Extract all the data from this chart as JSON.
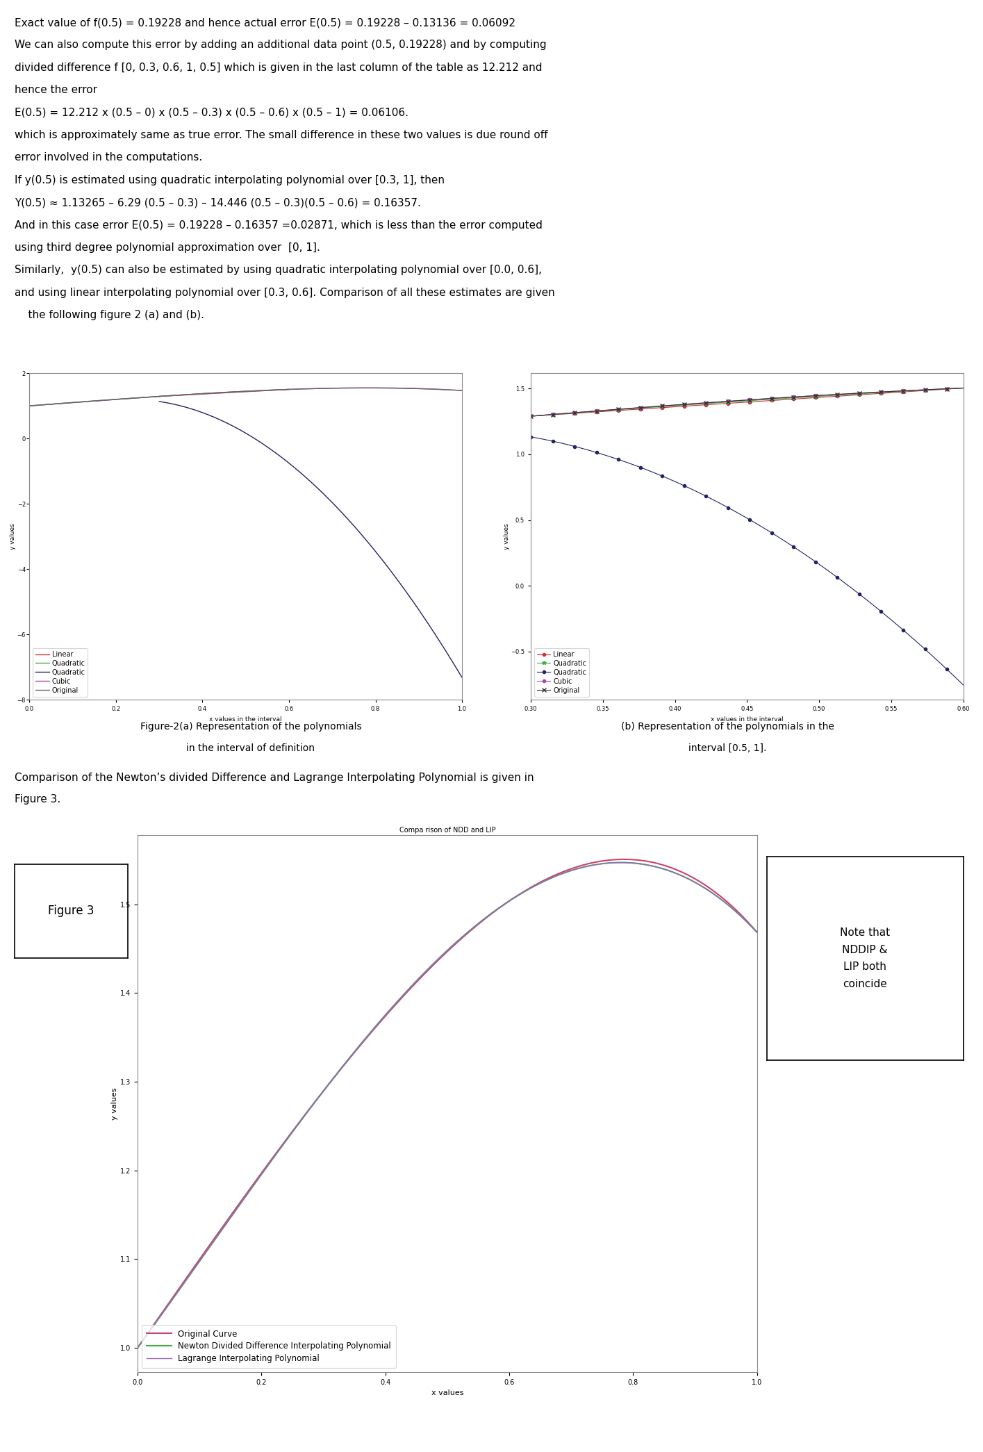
{
  "text_lines": [
    {
      "text": "Exact value of f(0.5) = 0.19228 and hence actual error E(0.5) = 0.19228 – 0.13136 = 0.06092",
      "indent": 0
    },
    {
      "text": "We can also compute this error by adding an additional data point (0.5, 0.19228) and by computing",
      "indent": 0
    },
    {
      "text": "divided difference f [0, 0.3, 0.6, 1, 0.5] which is given in the last column of the table as 12.212 and",
      "indent": 0
    },
    {
      "text": "hence the error",
      "indent": 0
    },
    {
      "text": "E(0.5) = 12.212 x (0.5 – 0) x (0.5 – 0.3) x (0.5 – 0.6) x (0.5 – 1) = 0.06106.",
      "indent": 0
    },
    {
      "text": "which is approximately same as true error. The small difference in these two values is due round off",
      "indent": 0
    },
    {
      "text": "error involved in the computations.",
      "indent": 0
    },
    {
      "text": "If y(0.5) is estimated using quadratic interpolating polynomial over [0.3, 1], then",
      "indent": 0
    },
    {
      "text": "Y(0.5) ≈ 1.13265 – 6.29 (0.5 – 0.3) – 14.446 (0.5 – 0.3)(0.5 – 0.6) = 0.16357.",
      "indent": 0
    },
    {
      "text": "And in this case error E(0.5) = 0.19228 – 0.16357 =0.02871, which is less than the error computed",
      "indent": 0
    },
    {
      "text": "using third degree polynomial approximation over  [0, 1].",
      "indent": 0
    },
    {
      "text": "Similarly,  y(0.5) can also be estimated by using quadratic interpolating polynomial over [0.0, 0.6],",
      "indent": 0
    },
    {
      "text": "and using linear interpolating polynomial over [0.3, 0.6]. Comparison of all these estimates are given",
      "indent": 0
    },
    {
      "text": "    the following figure 2 (a) and (b).",
      "indent": 0
    }
  ],
  "fig2a_caption_line1": "Figure-2(a) Representation of the polynomials",
  "fig2a_caption_line2": "in the interval of definition",
  "fig2b_caption_line1": "(b) Representation of the polynomials in the",
  "fig2b_caption_line2": "interval [0.5, 1].",
  "fig3_caption_line1": "Comparison of the Newton’s divided Difference and Lagrange Interpolating Polynomial is given in",
  "fig3_caption_line2": "Figure 3.",
  "fig3_title": "Compa rison of NDD and LIP",
  "fig3_label": "Figure 3",
  "fig3_note": "Note that\nNDDIP &\nLIP both\ncoincide",
  "fig3_legend": [
    "Original Curve",
    "Newton Divided Difference Interpolating Polynomial",
    "Lagrange Interpolating Polynomial"
  ],
  "fig3_legend_colors": [
    "#cc4466",
    "#44aa44",
    "#9966cc"
  ],
  "background_color": "#ffffff"
}
